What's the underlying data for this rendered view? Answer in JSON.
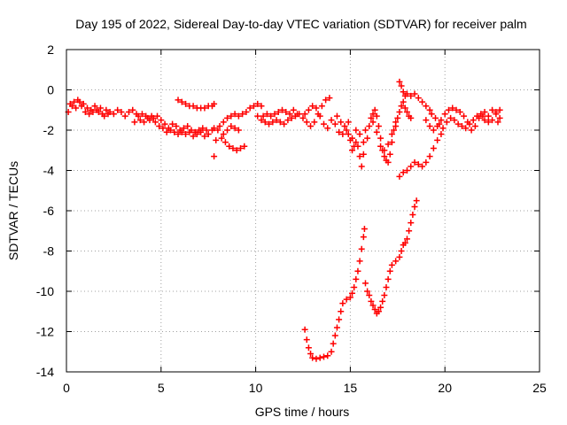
{
  "chart_data": {
    "type": "scatter",
    "title": "Day 195 of 2022, Sidereal Day-to-day VTEC variation (SDTVAR) for receiver palm",
    "xlabel": "GPS time / hours",
    "ylabel": "SDTVAR / TECUs",
    "xlim": [
      0,
      25
    ],
    "ylim": [
      -14,
      2
    ],
    "x_ticks": [
      0,
      5,
      10,
      15,
      20,
      25
    ],
    "y_ticks": [
      -14,
      -12,
      -10,
      -8,
      -6,
      -4,
      -2,
      0,
      2
    ],
    "grid": true,
    "marker": "+",
    "colors": {
      "series": "#ff0000",
      "axis": "#000000",
      "grid": "#a0a0a0"
    },
    "series": [
      {
        "name": "SDTVAR",
        "points": [
          [
            0.1,
            -1.1
          ],
          [
            0.3,
            -0.8
          ],
          [
            0.5,
            -0.9
          ],
          [
            0.7,
            -0.6
          ],
          [
            0.9,
            -0.7
          ],
          [
            1.1,
            -0.9
          ],
          [
            1.3,
            -1.0
          ],
          [
            1.5,
            -0.8
          ],
          [
            1.7,
            -1.1
          ],
          [
            1.9,
            -1.2
          ],
          [
            2.1,
            -1.0
          ],
          [
            2.3,
            -1.1
          ],
          [
            2.5,
            -1.2
          ],
          [
            2.7,
            -1.0
          ],
          [
            0.2,
            -0.7
          ],
          [
            0.4,
            -0.6
          ],
          [
            0.6,
            -0.5
          ],
          [
            0.8,
            -0.8
          ],
          [
            1.0,
            -1.1
          ],
          [
            1.2,
            -1.2
          ],
          [
            1.4,
            -1.1
          ],
          [
            1.6,
            -1.0
          ],
          [
            1.8,
            -0.9
          ],
          [
            2.0,
            -1.3
          ],
          [
            2.2,
            -1.2
          ],
          [
            2.9,
            -1.1
          ],
          [
            3.1,
            -1.3
          ],
          [
            3.3,
            -1.1
          ],
          [
            3.5,
            -1.0
          ],
          [
            3.7,
            -1.2
          ],
          [
            3.9,
            -1.5
          ],
          [
            4.1,
            -1.6
          ],
          [
            4.3,
            -1.4
          ],
          [
            4.5,
            -1.3
          ],
          [
            4.7,
            -1.6
          ],
          [
            4.9,
            -1.8
          ],
          [
            5.1,
            -1.9
          ],
          [
            5.3,
            -2.1
          ],
          [
            5.5,
            -2.0
          ],
          [
            5.7,
            -2.1
          ],
          [
            5.9,
            -2.2
          ],
          [
            6.1,
            -2.1
          ],
          [
            6.3,
            -2.2
          ],
          [
            6.5,
            -2.1
          ],
          [
            6.7,
            -2.3
          ],
          [
            6.9,
            -2.2
          ],
          [
            7.1,
            -2.1
          ],
          [
            7.3,
            -2.3
          ],
          [
            7.5,
            -2.2
          ],
          [
            7.7,
            -2.0
          ],
          [
            3.6,
            -1.6
          ],
          [
            3.8,
            -1.3
          ],
          [
            4.0,
            -1.2
          ],
          [
            4.2,
            -1.3
          ],
          [
            4.4,
            -1.5
          ],
          [
            4.6,
            -1.4
          ],
          [
            4.8,
            -1.3
          ],
          [
            5.0,
            -1.5
          ],
          [
            5.2,
            -1.7
          ],
          [
            5.4,
            -1.9
          ],
          [
            5.6,
            -1.7
          ],
          [
            5.8,
            -1.8
          ],
          [
            6.0,
            -2.0
          ],
          [
            6.2,
            -1.9
          ],
          [
            6.4,
            -1.8
          ],
          [
            6.6,
            -2.0
          ],
          [
            6.8,
            -2.1
          ],
          [
            7.0,
            -2.0
          ],
          [
            7.2,
            -1.9
          ],
          [
            7.4,
            -2.0
          ],
          [
            5.9,
            -0.5
          ],
          [
            6.1,
            -0.6
          ],
          [
            6.3,
            -0.7
          ],
          [
            6.5,
            -0.8
          ],
          [
            6.7,
            -0.8
          ],
          [
            6.9,
            -0.9
          ],
          [
            7.1,
            -0.9
          ],
          [
            7.3,
            -0.9
          ],
          [
            7.5,
            -0.8
          ],
          [
            7.7,
            -0.8
          ],
          [
            7.8,
            -0.7
          ],
          [
            7.8,
            -1.9
          ],
          [
            7.9,
            -2.5
          ],
          [
            7.8,
            -3.3
          ],
          [
            8.0,
            -2.0
          ],
          [
            8.1,
            -1.8
          ],
          [
            8.3,
            -1.6
          ],
          [
            8.5,
            -1.4
          ],
          [
            8.7,
            -1.3
          ],
          [
            8.9,
            -1.2
          ],
          [
            9.1,
            -1.3
          ],
          [
            9.3,
            -1.2
          ],
          [
            9.5,
            -1.1
          ],
          [
            9.7,
            -0.9
          ],
          [
            9.9,
            -0.8
          ],
          [
            10.1,
            -0.7
          ],
          [
            10.3,
            -0.8
          ],
          [
            8.2,
            -2.4
          ],
          [
            8.4,
            -2.6
          ],
          [
            8.6,
            -2.8
          ],
          [
            8.8,
            -2.9
          ],
          [
            9.0,
            -3.0
          ],
          [
            9.2,
            -2.9
          ],
          [
            9.4,
            -2.8
          ],
          [
            8.3,
            -2.2
          ],
          [
            8.5,
            -2.0
          ],
          [
            8.7,
            -1.8
          ],
          [
            8.9,
            -1.9
          ],
          [
            9.1,
            -2.0
          ],
          [
            10.1,
            -1.3
          ],
          [
            10.3,
            -1.5
          ],
          [
            10.5,
            -1.6
          ],
          [
            10.7,
            -1.7
          ],
          [
            10.9,
            -1.6
          ],
          [
            11.1,
            -1.5
          ],
          [
            11.3,
            -1.6
          ],
          [
            11.5,
            -1.7
          ],
          [
            11.7,
            -1.5
          ],
          [
            11.9,
            -1.4
          ],
          [
            12.1,
            -1.3
          ],
          [
            12.3,
            -1.2
          ],
          [
            10.4,
            -1.3
          ],
          [
            10.6,
            -1.2
          ],
          [
            10.8,
            -1.3
          ],
          [
            11.0,
            -1.2
          ],
          [
            11.2,
            -1.1
          ],
          [
            11.4,
            -1.0
          ],
          [
            11.6,
            -1.1
          ],
          [
            11.8,
            -1.2
          ],
          [
            12.0,
            -1.0
          ],
          [
            12.2,
            -1.2
          ],
          [
            12.5,
            -1.4
          ],
          [
            12.7,
            -1.6
          ],
          [
            12.9,
            -1.8
          ],
          [
            13.1,
            -1.6
          ],
          [
            13.3,
            -1.2
          ],
          [
            13.5,
            -0.8
          ],
          [
            13.7,
            -0.5
          ],
          [
            13.9,
            -0.4
          ],
          [
            12.6,
            -1.2
          ],
          [
            12.8,
            -1.0
          ],
          [
            13.0,
            -0.8
          ],
          [
            13.2,
            -0.9
          ],
          [
            13.4,
            -1.3
          ],
          [
            13.6,
            -1.7
          ],
          [
            13.8,
            -1.9
          ],
          [
            14.0,
            -1.5
          ],
          [
            14.2,
            -1.7
          ],
          [
            14.4,
            -2.1
          ],
          [
            14.6,
            -2.2
          ],
          [
            14.8,
            -2.0
          ],
          [
            14.9,
            -1.6
          ],
          [
            15.0,
            -2.5
          ],
          [
            15.1,
            -3.0
          ],
          [
            15.2,
            -2.8
          ],
          [
            15.3,
            -2.0
          ],
          [
            15.4,
            -2.8
          ],
          [
            15.5,
            -3.3
          ],
          [
            15.6,
            -3.8
          ],
          [
            15.7,
            -3.2
          ],
          [
            14.3,
            -1.3
          ],
          [
            14.5,
            -1.6
          ],
          [
            14.7,
            -1.8
          ],
          [
            14.9,
            -2.2
          ],
          [
            15.1,
            -2.4
          ],
          [
            15.3,
            -2.6
          ],
          [
            15.5,
            -2.2
          ],
          [
            15.7,
            -2.6
          ],
          [
            15.8,
            -2.0
          ],
          [
            15.9,
            -2.4
          ],
          [
            16.0,
            -1.8
          ],
          [
            16.1,
            -1.4
          ],
          [
            16.2,
            -1.2
          ],
          [
            16.3,
            -1.0
          ],
          [
            16.4,
            -1.3
          ],
          [
            16.5,
            -1.8
          ],
          [
            16.6,
            -2.4
          ],
          [
            16.7,
            -3.0
          ],
          [
            16.8,
            -3.3
          ],
          [
            16.9,
            -3.5
          ],
          [
            17.0,
            -3.6
          ],
          [
            17.1,
            -3.2
          ],
          [
            17.2,
            -2.6
          ],
          [
            17.3,
            -2.0
          ],
          [
            17.4,
            -1.6
          ],
          [
            16.2,
            -1.6
          ],
          [
            16.4,
            -2.1
          ],
          [
            16.6,
            -2.8
          ],
          [
            16.8,
            -3.0
          ],
          [
            17.0,
            -2.7
          ],
          [
            17.2,
            -2.2
          ],
          [
            17.4,
            -1.8
          ],
          [
            17.5,
            -1.4
          ],
          [
            17.6,
            -1.1
          ],
          [
            17.7,
            -0.8
          ],
          [
            17.8,
            -0.6
          ],
          [
            17.9,
            -0.9
          ],
          [
            18.0,
            -1.1
          ],
          [
            18.1,
            -1.3
          ],
          [
            18.2,
            -1.4
          ],
          [
            17.6,
            0.4
          ],
          [
            17.7,
            0.2
          ],
          [
            17.8,
            -0.1
          ],
          [
            17.9,
            -0.3
          ],
          [
            18.0,
            -0.2
          ],
          [
            18.2,
            -0.3
          ],
          [
            18.4,
            -0.2
          ],
          [
            18.6,
            -0.4
          ],
          [
            18.8,
            -0.6
          ],
          [
            19.0,
            -0.8
          ],
          [
            19.2,
            -1.0
          ],
          [
            17.6,
            -4.3
          ],
          [
            17.8,
            -4.1
          ],
          [
            18.0,
            -4.0
          ],
          [
            18.2,
            -3.8
          ],
          [
            18.4,
            -3.6
          ],
          [
            18.6,
            -3.7
          ],
          [
            18.8,
            -3.8
          ],
          [
            19.0,
            -3.6
          ],
          [
            19.2,
            -3.3
          ],
          [
            19.4,
            -2.9
          ],
          [
            19.6,
            -2.5
          ],
          [
            19.8,
            -2.2
          ],
          [
            19.0,
            -1.5
          ],
          [
            19.2,
            -1.8
          ],
          [
            19.4,
            -2.0
          ],
          [
            19.6,
            -1.8
          ],
          [
            19.8,
            -1.5
          ],
          [
            20.0,
            -1.2
          ],
          [
            20.2,
            -1.0
          ],
          [
            20.4,
            -0.9
          ],
          [
            20.6,
            -1.0
          ],
          [
            20.8,
            -1.1
          ],
          [
            21.0,
            -1.3
          ],
          [
            21.2,
            -1.6
          ],
          [
            21.4,
            -2.0
          ],
          [
            21.6,
            -1.8
          ],
          [
            21.8,
            -1.4
          ],
          [
            19.3,
            -1.2
          ],
          [
            19.5,
            -1.4
          ],
          [
            19.7,
            -1.7
          ],
          [
            19.9,
            -1.9
          ],
          [
            20.1,
            -1.6
          ],
          [
            20.3,
            -1.4
          ],
          [
            20.5,
            -1.5
          ],
          [
            20.7,
            -1.7
          ],
          [
            20.9,
            -1.8
          ],
          [
            21.1,
            -1.9
          ],
          [
            21.3,
            -1.7
          ],
          [
            21.5,
            -1.5
          ],
          [
            21.7,
            -1.3
          ],
          [
            21.9,
            -1.2
          ],
          [
            22.1,
            -1.5
          ],
          [
            22.3,
            -1.3
          ],
          [
            22.5,
            -1.0
          ],
          [
            22.7,
            -1.1
          ],
          [
            22.9,
            -1.4
          ],
          [
            22.1,
            -1.1
          ],
          [
            22.3,
            -1.6
          ],
          [
            22.5,
            -1.5
          ],
          [
            22.7,
            -1.2
          ],
          [
            22.9,
            -1.0
          ],
          [
            22.0,
            -1.3
          ],
          [
            22.8,
            -1.6
          ],
          [
            12.6,
            -11.9
          ],
          [
            12.7,
            -12.4
          ],
          [
            12.8,
            -12.8
          ],
          [
            12.9,
            -13.1
          ],
          [
            13.0,
            -13.3
          ],
          [
            13.2,
            -13.35
          ],
          [
            13.4,
            -13.3
          ],
          [
            13.6,
            -13.25
          ],
          [
            13.8,
            -13.2
          ],
          [
            14.0,
            -13.0
          ],
          [
            14.1,
            -12.6
          ],
          [
            14.2,
            -12.2
          ],
          [
            14.3,
            -11.8
          ],
          [
            14.4,
            -11.4
          ],
          [
            14.5,
            -11.0
          ],
          [
            14.6,
            -10.6
          ],
          [
            14.8,
            -10.4
          ],
          [
            15.0,
            -10.3
          ],
          [
            15.1,
            -10.1
          ],
          [
            15.2,
            -9.8
          ],
          [
            15.3,
            -9.4
          ],
          [
            15.4,
            -9.0
          ],
          [
            15.5,
            -8.5
          ],
          [
            15.6,
            -7.9
          ],
          [
            15.7,
            -7.3
          ],
          [
            15.75,
            -6.9
          ],
          [
            15.8,
            -9.6
          ],
          [
            15.9,
            -10.0
          ],
          [
            16.0,
            -10.2
          ],
          [
            16.1,
            -10.5
          ],
          [
            16.2,
            -10.7
          ],
          [
            16.3,
            -10.9
          ],
          [
            16.4,
            -11.1
          ],
          [
            16.5,
            -11.0
          ],
          [
            16.6,
            -10.8
          ],
          [
            16.7,
            -10.5
          ],
          [
            16.8,
            -10.2
          ],
          [
            16.9,
            -9.8
          ],
          [
            17.0,
            -9.4
          ],
          [
            17.1,
            -9.0
          ],
          [
            17.2,
            -8.7
          ],
          [
            17.4,
            -8.5
          ],
          [
            17.6,
            -8.3
          ],
          [
            17.7,
            -8.0
          ],
          [
            17.8,
            -7.7
          ],
          [
            17.9,
            -7.6
          ],
          [
            18.0,
            -7.4
          ],
          [
            18.1,
            -7.0
          ],
          [
            18.2,
            -6.6
          ],
          [
            18.3,
            -6.2
          ],
          [
            18.4,
            -5.8
          ],
          [
            18.5,
            -5.5
          ]
        ]
      }
    ]
  }
}
